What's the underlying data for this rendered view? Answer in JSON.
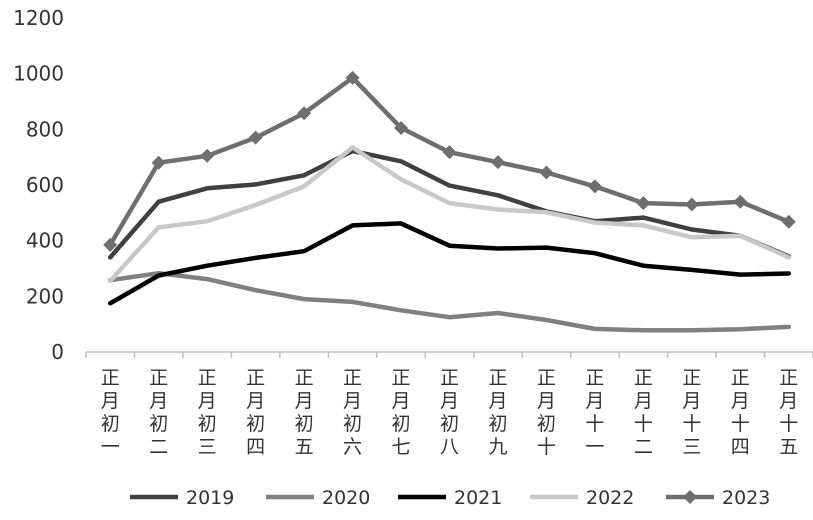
{
  "chart_data": {
    "type": "line",
    "title": "",
    "xlabel": "",
    "ylabel": "",
    "ylim": [
      0,
      1200
    ],
    "yticks": [
      0,
      200,
      400,
      600,
      800,
      1000,
      1200
    ],
    "grid": false,
    "legend_position": "bottom",
    "categories": [
      "正月初一",
      "正月初二",
      "正月初三",
      "正月初四",
      "正月初五",
      "正月初六",
      "正月初七",
      "正月初八",
      "正月初九",
      "正月初十",
      "正月十一",
      "正月十二",
      "正月十三",
      "正月十四",
      "正月十五"
    ],
    "series": [
      {
        "name": "2019",
        "color": "#404040",
        "marker": "none",
        "values": [
          340,
          540,
          588,
          602,
          635,
          722,
          685,
          598,
          563,
          505,
          470,
          483,
          440,
          418,
          343
        ]
      },
      {
        "name": "2020",
        "color": "#808080",
        "marker": "none",
        "values": [
          258,
          283,
          262,
          222,
          190,
          180,
          150,
          125,
          140,
          115,
          83,
          78,
          78,
          82,
          90
        ]
      },
      {
        "name": "2021",
        "color": "#000000",
        "marker": "none",
        "values": [
          175,
          275,
          310,
          338,
          362,
          455,
          462,
          382,
          372,
          375,
          355,
          310,
          295,
          278,
          282
        ]
      },
      {
        "name": "2022",
        "color": "#c8c8c8",
        "marker": "none",
        "values": [
          255,
          448,
          470,
          528,
          595,
          735,
          620,
          535,
          512,
          502,
          465,
          455,
          412,
          418,
          340
        ]
      },
      {
        "name": "2023",
        "color": "#6e6e6e",
        "marker": "diamond",
        "values": [
          385,
          680,
          705,
          770,
          858,
          985,
          805,
          718,
          682,
          645,
          595,
          535,
          530,
          540,
          468
        ]
      }
    ]
  }
}
